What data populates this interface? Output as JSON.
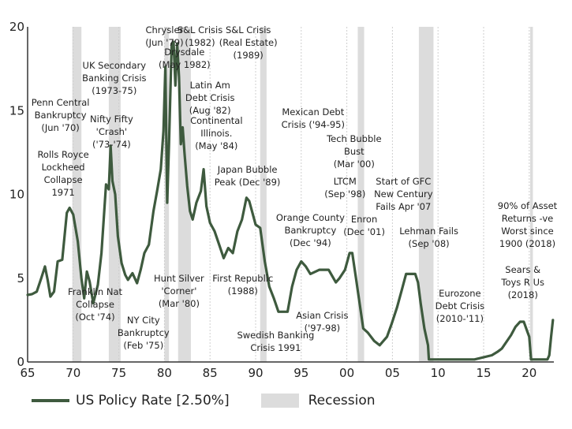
{
  "chart_data": {
    "type": "line",
    "title": "",
    "xlabel": "",
    "ylabel": "",
    "xlim": [
      1965,
      2022.7
    ],
    "ylim": [
      0,
      20
    ],
    "x_ticks": [
      1965,
      1970,
      1975,
      1980,
      1985,
      1990,
      1995,
      2000,
      2005,
      2010,
      2015,
      2020
    ],
    "x_tick_labels": [
      "65",
      "70",
      "75",
      "80",
      "85",
      "90",
      "95",
      "00",
      "05",
      "10",
      "15",
      "20"
    ],
    "y_ticks": [
      0,
      5,
      10,
      15,
      20
    ],
    "y_tick_labels": [
      "0",
      "5",
      "10",
      "15",
      "20"
    ],
    "grid": "vertical",
    "legend_position": "bottom",
    "series": [
      {
        "name": "US Policy Rate [2.50%]",
        "color": "#3e5a3e",
        "x": [
          1965.0,
          1965.5,
          1966.0,
          1966.5,
          1966.9,
          1967.2,
          1967.5,
          1967.9,
          1968.3,
          1968.8,
          1969.3,
          1969.6,
          1970.0,
          1970.5,
          1970.9,
          1971.2,
          1971.5,
          1971.8,
          1972.2,
          1972.7,
          1973.1,
          1973.6,
          1973.9,
          1974.1,
          1974.3,
          1974.6,
          1974.9,
          1975.3,
          1975.7,
          1976.0,
          1976.5,
          1977.0,
          1977.4,
          1977.8,
          1978.3,
          1978.8,
          1979.2,
          1979.6,
          1979.9,
          1980.1,
          1980.3,
          1980.5,
          1980.8,
          1981.0,
          1981.2,
          1981.4,
          1981.6,
          1981.8,
          1982.0,
          1982.2,
          1982.5,
          1982.8,
          1983.1,
          1983.5,
          1984.0,
          1984.3,
          1984.6,
          1985.0,
          1985.5,
          1986.0,
          1986.5,
          1987.0,
          1987.5,
          1988.0,
          1988.5,
          1989.0,
          1989.3,
          1989.6,
          1990.0,
          1990.5,
          1991.0,
          1991.5,
          1992.0,
          1992.5,
          1993.5,
          1994.0,
          1994.5,
          1995.0,
          1995.5,
          1996.0,
          1997.0,
          1998.0,
          1998.8,
          1999.2,
          1999.8,
          2000.3,
          2000.6,
          2001.0,
          2001.4,
          2001.8,
          2002.3,
          2003.0,
          2003.6,
          2004.4,
          2004.9,
          2005.5,
          2006.0,
          2006.5,
          2007.5,
          2007.8,
          2008.1,
          2008.5,
          2008.9,
          2009.0,
          2010.0,
          2012.0,
          2014.0,
          2015.9,
          2016.5,
          2017.0,
          2017.5,
          2018.0,
          2018.5,
          2019.0,
          2019.4,
          2019.8,
          2020.0,
          2020.2,
          2021.0,
          2022.0,
          2022.2,
          2022.4,
          2022.6
        ],
        "values": [
          4.0,
          4.05,
          4.2,
          5.0,
          5.7,
          4.9,
          3.9,
          4.2,
          6.0,
          6.1,
          8.9,
          9.2,
          8.8,
          7.2,
          5.0,
          3.8,
          5.4,
          4.8,
          3.5,
          4.6,
          6.5,
          10.6,
          10.3,
          12.9,
          10.8,
          10.0,
          7.5,
          5.9,
          5.2,
          4.9,
          5.3,
          4.7,
          5.5,
          6.5,
          7.0,
          9.0,
          10.2,
          11.5,
          13.8,
          17.6,
          9.5,
          13.0,
          19.0,
          19.1,
          16.5,
          19.0,
          17.0,
          13.0,
          14.0,
          12.5,
          10.5,
          9.0,
          8.5,
          9.5,
          10.2,
          11.5,
          9.3,
          8.3,
          7.8,
          7.0,
          6.2,
          6.8,
          6.5,
          7.8,
          8.5,
          9.8,
          9.6,
          9.0,
          8.2,
          8.0,
          6.0,
          4.5,
          3.8,
          3.0,
          3.0,
          4.5,
          5.5,
          6.0,
          5.7,
          5.25,
          5.5,
          5.5,
          4.75,
          5.0,
          5.5,
          6.5,
          6.5,
          5.0,
          3.5,
          2.0,
          1.75,
          1.25,
          1.0,
          1.5,
          2.25,
          3.25,
          4.25,
          5.25,
          5.25,
          4.75,
          3.5,
          2.0,
          1.0,
          0.15,
          0.15,
          0.15,
          0.15,
          0.4,
          0.6,
          0.8,
          1.2,
          1.6,
          2.1,
          2.4,
          2.4,
          1.8,
          1.5,
          0.15,
          0.15,
          0.15,
          0.4,
          1.5,
          2.5
        ]
      }
    ],
    "recessions": {
      "name": "Recession",
      "color": "#dcdcdc",
      "periods": [
        [
          1969.9,
          1970.9
        ],
        [
          1973.9,
          1975.2
        ],
        [
          1980.0,
          1980.5
        ],
        [
          1981.5,
          1982.9
        ],
        [
          1990.5,
          1991.2
        ],
        [
          2001.2,
          2001.9
        ],
        [
          2007.9,
          2009.5
        ],
        [
          2020.1,
          2020.4
        ]
      ]
    },
    "annotations": [
      {
        "x": 1980.0,
        "y": 19.8,
        "text": "Chrysler\n(Jun '79)"
      },
      {
        "x": 1983.9,
        "y": 19.8,
        "text": "S&L Crisis\n(1982)"
      },
      {
        "x": 1989.2,
        "y": 19.8,
        "text": "S&L Crisis\n(Real Estate)\n(1989)"
      },
      {
        "x": 1982.2,
        "y": 18.5,
        "text": "Drysdale\n(May 1982)"
      },
      {
        "x": 1974.5,
        "y": 17.7,
        "text": "UK Secondary\nBanking Crisis\n(1973-75)"
      },
      {
        "x": 1968.6,
        "y": 15.5,
        "text": "Penn Central\nBankruptcy\n(Jun '70)"
      },
      {
        "x": 1974.2,
        "y": 14.5,
        "text": "Nifty Fifty\n'Crash'\n('73-'74)"
      },
      {
        "x": 1985.0,
        "y": 16.5,
        "text": "Latin Am\nDebt Crisis\n(Aug '82)"
      },
      {
        "x": 1985.7,
        "y": 14.4,
        "text": "Continental\nIllinois.\n(May '84)"
      },
      {
        "x": 1996.3,
        "y": 14.9,
        "text": "Mexican Debt\nCrisis ('94-95)"
      },
      {
        "x": 2000.8,
        "y": 13.3,
        "text": "Tech Bubble\nBust\n(Mar '00)"
      },
      {
        "x": 1968.9,
        "y": 12.4,
        "text": "Rolls Royce\nLockheed\nCollapse\n1971"
      },
      {
        "x": 1989.1,
        "y": 11.5,
        "text": "Japan Bubble\nPeak (Dec '89)"
      },
      {
        "x": 1999.8,
        "y": 10.8,
        "text": "LTCM\n(Sep '98)"
      },
      {
        "x": 2006.2,
        "y": 10.8,
        "text": "Start of GFC\nNew Century\nFails Apr '07"
      },
      {
        "x": 2019.8,
        "y": 9.3,
        "text": "90% of Asset\nReturns -ve\nWorst since\n1900 (2018)"
      },
      {
        "x": 1996.0,
        "y": 8.6,
        "text": "Orange County\nBankruptcy\n(Dec '94)"
      },
      {
        "x": 2001.9,
        "y": 8.5,
        "text": "Enron\n(Dec '01)"
      },
      {
        "x": 2009.0,
        "y": 7.8,
        "text": "Lehman Fails\n(Sep '08)"
      },
      {
        "x": 2019.3,
        "y": 5.5,
        "text": "Sears &\nToys R Us\n(2018)"
      },
      {
        "x": 1981.6,
        "y": 5.0,
        "text": "Hunt Silver\n'Corner'\n(Mar '80)"
      },
      {
        "x": 1988.6,
        "y": 5.0,
        "text": "First Republic\n(1988)"
      },
      {
        "x": 2012.4,
        "y": 4.1,
        "text": "Eurozone\nDebt Crisis\n(2010-'11)"
      },
      {
        "x": 1972.4,
        "y": 4.2,
        "text": "Franklin Nat\nCollapse\n(Oct '74)"
      },
      {
        "x": 1997.3,
        "y": 2.8,
        "text": "Asian Crisis\n('97-98)"
      },
      {
        "x": 1977.7,
        "y": 2.5,
        "text": "NY City\nBankruptcy\n(Feb '75)"
      },
      {
        "x": 1992.2,
        "y": 1.6,
        "text": "Swedish Banking\nCrisis 1991"
      }
    ]
  },
  "legend": {
    "series_label": "US Policy Rate [2.50%]",
    "recession_label": "Recession"
  }
}
